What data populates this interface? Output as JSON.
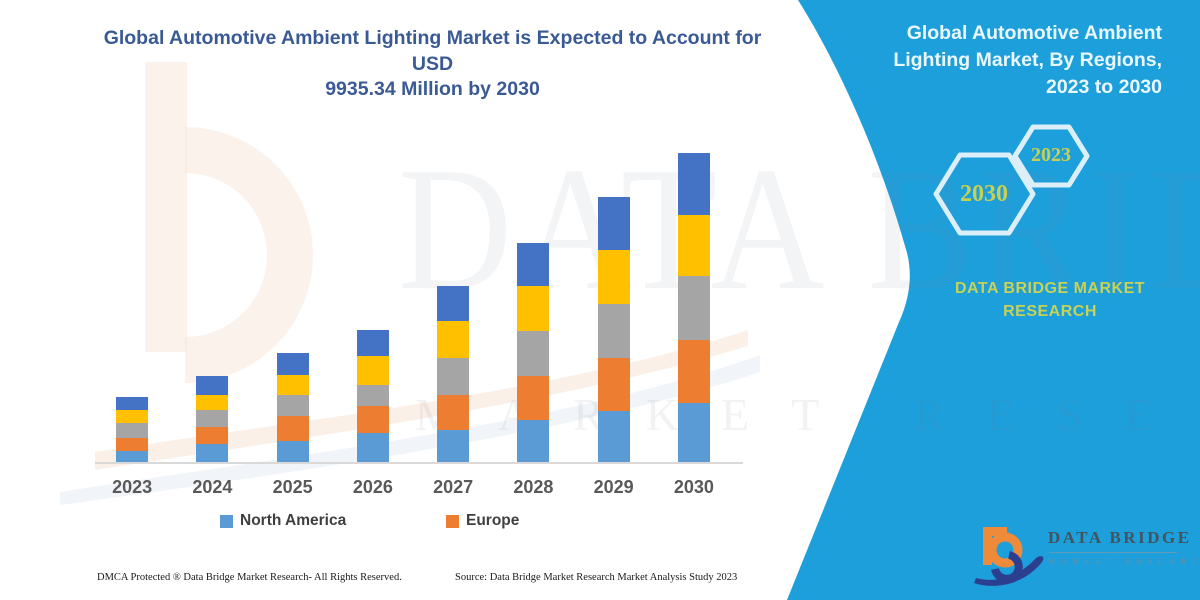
{
  "colors": {
    "panel_cyan": "#1C9FDB",
    "title_navy": "#3A5A96",
    "hex_text": "#C8D051",
    "axis_label": "#595959",
    "logo_orange": "#EF8A3B",
    "logo_navy": "#2C3F8F"
  },
  "main_title": {
    "line1": "Global Automotive Ambient Lighting Market is Expected to Account for USD",
    "line2": "9935.34 Million by 2030"
  },
  "panel": {
    "title": "Global Automotive Ambient Lighting Market, By Regions, 2023 to 2030",
    "hexagon_big_label": "2030",
    "hexagon_small_label": "2023",
    "brand_line1": "DATA BRIDGE MARKET",
    "brand_line2": "RESEARCH",
    "logo_name": "DATA BRIDGE",
    "logo_sub": "MARKET RESEARCH"
  },
  "watermark": {
    "line1": "DATA BRIDGE",
    "line2": "MARKET RESEARCH"
  },
  "chart_data": {
    "type": "bar",
    "stacked": true,
    "title": "Global Automotive Ambient Lighting Market is Expected to Account for USD 9935.34 Million by 2030",
    "unit": "USD Million",
    "categories": [
      "2023",
      "2024",
      "2025",
      "2026",
      "2027",
      "2028",
      "2029",
      "2030"
    ],
    "series": [
      {
        "name": "North America",
        "color": "#5B9BD5",
        "values": [
          385,
          620,
          695,
          960,
          1070,
          1390,
          1665,
          1925
        ]
      },
      {
        "name": "Europe",
        "color": "#ED7D31",
        "values": [
          415,
          535,
          800,
          855,
          1100,
          1385,
          1710,
          2030
        ]
      },
      {
        "name": "unlabeled-gray-region",
        "color": "#A5A5A5",
        "values": [
          480,
          535,
          695,
          675,
          1205,
          1450,
          1730,
          2025
        ]
      },
      {
        "name": "unlabeled-yellow-region",
        "color": "#FFC000",
        "values": [
          415,
          505,
          640,
          930,
          1175,
          1460,
          1705,
          1985
        ]
      },
      {
        "name": "unlabeled-darkblue-region",
        "color": "#4472C4",
        "values": [
          420,
          585,
          695,
          835,
          1120,
          1375,
          1705,
          1970.34
        ]
      }
    ],
    "totals": [
      2115,
      2780,
      3525,
      4255,
      5670,
      7060,
      8515,
      9935.34
    ],
    "ylim": [
      0,
      9935.34
    ],
    "y_axis_visible": false,
    "gridlines": false,
    "legend_position": "bottom",
    "legend_visible_entries": [
      "North America",
      "Europe"
    ]
  },
  "legend": [
    {
      "label": "North America",
      "color": "#5B9BD5"
    },
    {
      "label": "Europe",
      "color": "#ED7D31"
    }
  ],
  "footer": {
    "left": "DMCA Protected ® Data Bridge Market Research-  All Rights Reserved.",
    "right": "Source: Data Bridge Market Research  Market Analysis Study 2023"
  }
}
